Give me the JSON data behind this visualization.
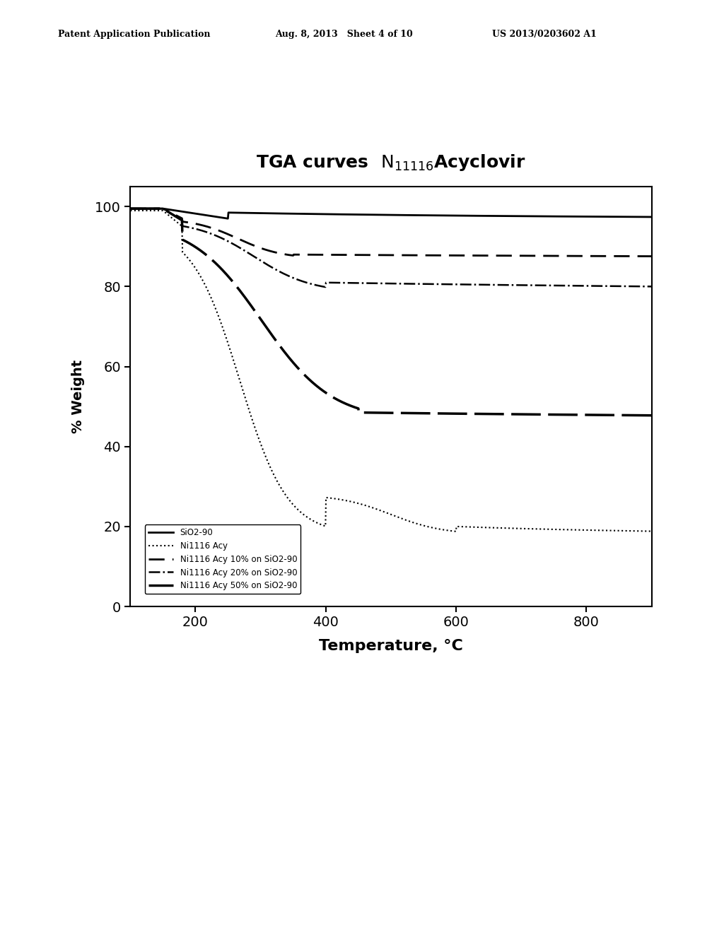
{
  "title": "TGA curves  $\\mathrm{N_{11116}}$Acyclovir",
  "xlabel": "Temperature, °C",
  "ylabel": "% Weight",
  "xlim": [
    100,
    900
  ],
  "ylim": [
    0,
    105
  ],
  "xticks": [
    200,
    400,
    600,
    800
  ],
  "yticks": [
    0,
    20,
    40,
    60,
    80,
    100
  ],
  "header_left": "Patent Application Publication",
  "header_mid": "Aug. 8, 2013   Sheet 4 of 10",
  "header_right": "US 2013/0203602 A1",
  "legend_labels": [
    "SiO2-90",
    "Ni1116 Acy",
    "Ni1116 Acy 10% on SiO2-90",
    "Ni1116 Acy 20% on SiO2-90",
    "Ni1116 Acy 50% on SiO2-90"
  ],
  "line_widths": [
    2.0,
    1.5,
    2.0,
    1.8,
    2.5
  ],
  "bg_color": "#ffffff",
  "line_color": "#000000"
}
